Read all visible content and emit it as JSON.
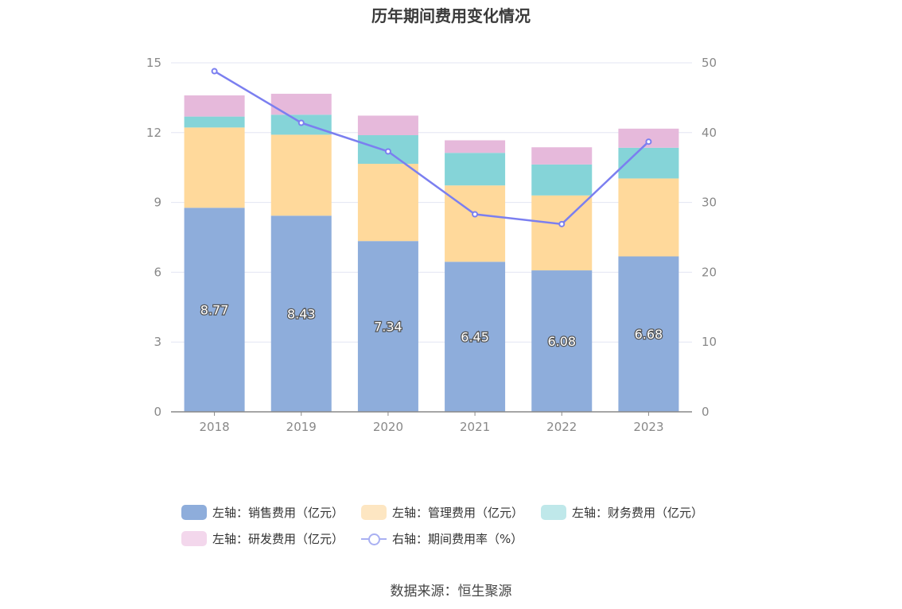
{
  "chart_data": {
    "type": "bar",
    "title": "历年期间费用变化情况",
    "categories": [
      "2018",
      "2019",
      "2020",
      "2021",
      "2022",
      "2023"
    ],
    "stacked": true,
    "left_axis": {
      "ylim": [
        0,
        15
      ],
      "ticks": [
        "0",
        "3",
        "6",
        "9",
        "12",
        "15"
      ]
    },
    "right_axis": {
      "ylim": [
        0,
        50
      ],
      "ticks": [
        "0",
        "10",
        "20",
        "30",
        "40",
        "50"
      ]
    },
    "series": [
      {
        "name": "左轴：销售费用（亿元）",
        "axis": "left",
        "color": "#8eaddb",
        "values": [
          8.77,
          8.43,
          7.34,
          6.45,
          6.08,
          6.68
        ],
        "labels": [
          "8.77",
          "8.43",
          "7.34",
          "6.45",
          "6.08",
          "6.68"
        ]
      },
      {
        "name": "左轴：管理费用（亿元）",
        "axis": "left",
        "color": "#ffd99b",
        "values": [
          3.45,
          3.48,
          3.32,
          3.28,
          3.22,
          3.35
        ]
      },
      {
        "name": "左轴：财务费用（亿元）",
        "axis": "left",
        "color": "#85d4d8",
        "values": [
          0.47,
          0.86,
          1.23,
          1.4,
          1.33,
          1.32
        ]
      },
      {
        "name": "左轴：研发费用（亿元）",
        "axis": "left",
        "color": "#e6b9db",
        "values": [
          0.91,
          0.9,
          0.84,
          0.54,
          0.74,
          0.82
        ]
      },
      {
        "name": "右轴：期间费用率（%）",
        "axis": "right",
        "type": "line",
        "color": "#7b7ff0",
        "values": [
          48.8,
          41.4,
          37.3,
          28.3,
          26.9,
          38.7
        ]
      }
    ],
    "legend_position": "bottom",
    "grid": true
  },
  "source_text": "数据来源：恒生聚源"
}
